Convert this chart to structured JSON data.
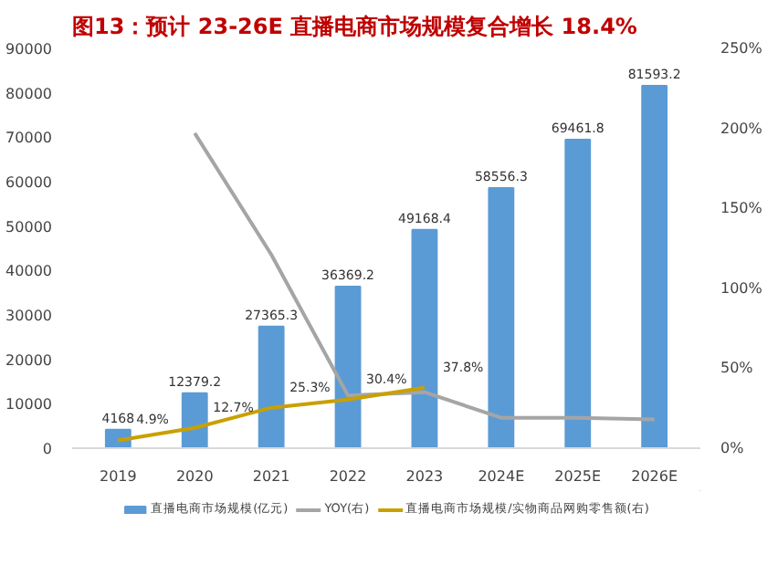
{
  "chart_data": {
    "type": "bar",
    "title": "图13：预计 23-26E 直播电商市场规模复合增长 18.4%",
    "categories": [
      "2019",
      "2020",
      "2021",
      "2022",
      "2023",
      "2024E",
      "2025E",
      "2026E"
    ],
    "series": [
      {
        "name": "直播电商市场规模(亿元)",
        "color": "#5b9bd5",
        "values": [
          4168,
          12379.2,
          27365.3,
          36369.2,
          49168.4,
          58556.3,
          69461.8,
          81593.2
        ],
        "value_labels": [
          "4168",
          "12379.2",
          "27365.3",
          "36369.2",
          "49168.4",
          "58556.3",
          "69461.8",
          "81593.2"
        ]
      },
      {
        "name": "YOY(右)",
        "type": "line",
        "axis": "y2",
        "color": "#a5a5a5",
        "values": [
          null,
          197,
          121,
          33,
          35,
          19,
          19,
          18
        ]
      },
      {
        "name": "直播电商市场规模/实物商品网购零售额(右)",
        "type": "line",
        "axis": "y2",
        "color": "#c9a000",
        "values": [
          4.9,
          12.7,
          25.3,
          30.4,
          37.8,
          null,
          null,
          null
        ],
        "value_labels": [
          "4.9%",
          "12.7%",
          "25.3%",
          "30.4%",
          "37.8%",
          null,
          null,
          null
        ]
      }
    ],
    "ylim": [
      0,
      90000
    ],
    "yticks": [
      0,
      10000,
      20000,
      30000,
      40000,
      50000,
      60000,
      70000,
      80000,
      90000
    ],
    "y2lim": [
      0,
      250
    ],
    "y2ticks": [
      {
        "value": 0,
        "label": "0%"
      },
      {
        "value": 50,
        "label": "50%"
      },
      {
        "value": 100,
        "label": "100%"
      },
      {
        "value": 150,
        "label": "150%"
      },
      {
        "value": 200,
        "label": "200%"
      },
      {
        "value": 250,
        "label": "250%"
      }
    ],
    "grid": false,
    "legend": "bottom",
    "line_style": "solid",
    "marker": "none"
  }
}
